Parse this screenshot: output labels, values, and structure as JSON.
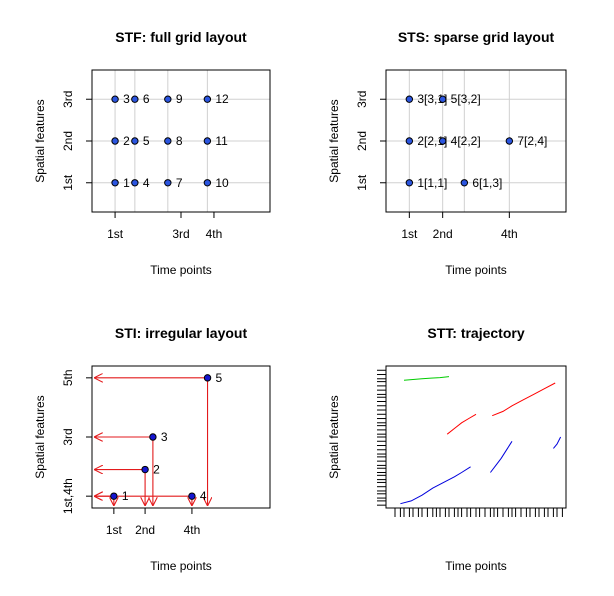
{
  "chart_data": [
    {
      "type": "scatter",
      "title": "STF: full grid layout",
      "xlabel": "Time points",
      "ylabel": "Spatial features",
      "xlim": [
        0.3,
        5.7
      ],
      "ylim": [
        0.3,
        3.7
      ],
      "x_ticks": [
        {
          "v": 1,
          "label": "1st"
        },
        {
          "v": 3,
          "label": "3rd"
        },
        {
          "v": 4,
          "label": "4th"
        }
      ],
      "y_ticks": [
        {
          "v": 1,
          "label": "1st"
        },
        {
          "v": 2,
          "label": "2nd"
        },
        {
          "v": 3,
          "label": "3rd"
        }
      ],
      "grid_x": [
        1,
        1.6,
        2.6,
        3.8
      ],
      "grid_y": [
        1,
        2,
        3
      ],
      "grid": true,
      "points": [
        {
          "x": 1,
          "y": 1,
          "label": "1"
        },
        {
          "x": 1,
          "y": 2,
          "label": "2"
        },
        {
          "x": 1,
          "y": 3,
          "label": "3"
        },
        {
          "x": 1.6,
          "y": 1,
          "label": "4"
        },
        {
          "x": 1.6,
          "y": 2,
          "label": "5"
        },
        {
          "x": 1.6,
          "y": 3,
          "label": "6"
        },
        {
          "x": 2.6,
          "y": 1,
          "label": "7"
        },
        {
          "x": 2.6,
          "y": 2,
          "label": "8"
        },
        {
          "x": 2.6,
          "y": 3,
          "label": "9"
        },
        {
          "x": 3.8,
          "y": 1,
          "label": "10"
        },
        {
          "x": 3.8,
          "y": 2,
          "label": "11"
        },
        {
          "x": 3.8,
          "y": 3,
          "label": "12"
        }
      ]
    },
    {
      "type": "scatter",
      "title": "STS: sparse grid layout",
      "xlabel": "Time points",
      "ylabel": "Spatial features",
      "xlim": [
        0.3,
        5.7
      ],
      "ylim": [
        0.3,
        3.7
      ],
      "x_ticks": [
        {
          "v": 1,
          "label": "1st"
        },
        {
          "v": 2,
          "label": "2nd"
        },
        {
          "v": 4,
          "label": "4th"
        }
      ],
      "y_ticks": [
        {
          "v": 1,
          "label": "1st"
        },
        {
          "v": 2,
          "label": "2nd"
        },
        {
          "v": 3,
          "label": "3rd"
        }
      ],
      "grid_x": [
        1,
        2,
        2.65,
        4
      ],
      "grid_y": [
        1,
        2,
        3
      ],
      "grid": true,
      "points": [
        {
          "x": 1,
          "y": 1,
          "label": "1[1,1]"
        },
        {
          "x": 1,
          "y": 2,
          "label": "2[2,1]"
        },
        {
          "x": 1,
          "y": 3,
          "label": "3[3,1]"
        },
        {
          "x": 2,
          "y": 2,
          "label": "4[2,2]"
        },
        {
          "x": 2,
          "y": 3,
          "label": "5[3,2]"
        },
        {
          "x": 2.65,
          "y": 1,
          "label": "6[1,3]"
        },
        {
          "x": 4,
          "y": 2,
          "label": "7[2,4]"
        }
      ]
    },
    {
      "type": "scatter",
      "title": "STI: irregular layout",
      "xlabel": "Time points",
      "ylabel": "Spatial features",
      "xlim": [
        0.3,
        6.0
      ],
      "ylim": [
        0.6,
        5.4
      ],
      "x_ticks": [
        {
          "v": 1,
          "label": "1st"
        },
        {
          "v": 2,
          "label": "2nd"
        },
        {
          "v": 3.5,
          "label": "4th"
        }
      ],
      "y_ticks": [
        {
          "v": 1,
          "label": "1st,4th"
        },
        {
          "v": 3,
          "label": "3rd"
        },
        {
          "v": 5,
          "label": "5th"
        }
      ],
      "grid": false,
      "points": [
        {
          "x": 1,
          "y": 1,
          "label": "1"
        },
        {
          "x": 2,
          "y": 1.9,
          "label": "2"
        },
        {
          "x": 2.25,
          "y": 3,
          "label": "3"
        },
        {
          "x": 3.5,
          "y": 1,
          "label": "4"
        },
        {
          "x": 4,
          "y": 5,
          "label": "5"
        }
      ],
      "arrow_color": "#e31a1c",
      "point_color": "#1515d0"
    },
    {
      "type": "line",
      "title": "STT: trajectory",
      "xlabel": "Time points",
      "ylabel": "Spatial features",
      "xlim": [
        0,
        1
      ],
      "ylim": [
        0,
        1
      ],
      "grid": false,
      "series": [
        {
          "color": "#00cc00",
          "x": [
            0.1,
            0.15,
            0.2,
            0.25,
            0.3,
            0.35
          ],
          "y": [
            0.9,
            0.905,
            0.91,
            0.915,
            0.918,
            0.925
          ]
        },
        {
          "color": "#ff0000",
          "x": [
            0.34,
            0.38,
            0.42,
            0.46,
            0.5
          ],
          "y": [
            0.52,
            0.56,
            0.6,
            0.63,
            0.66
          ]
        },
        {
          "color": "#ff0000",
          "x": [
            0.59,
            0.65,
            0.7,
            0.76,
            0.82,
            0.88,
            0.94
          ],
          "y": [
            0.65,
            0.68,
            0.72,
            0.76,
            0.8,
            0.84,
            0.88
          ]
        },
        {
          "color": "#0000dd",
          "x": [
            0.08,
            0.14,
            0.2,
            0.26,
            0.32,
            0.38,
            0.42,
            0.47
          ],
          "y": [
            0.03,
            0.05,
            0.09,
            0.14,
            0.18,
            0.22,
            0.25,
            0.29
          ]
        },
        {
          "color": "#0000dd",
          "x": [
            0.58,
            0.61,
            0.64,
            0.67,
            0.7
          ],
          "y": [
            0.25,
            0.3,
            0.35,
            0.41,
            0.47
          ]
        },
        {
          "color": "#0000dd",
          "x": [
            0.93,
            0.95,
            0.97
          ],
          "y": [
            0.42,
            0.45,
            0.5
          ]
        }
      ],
      "rug_x": [
        0.05,
        0.08,
        0.1,
        0.13,
        0.15,
        0.18,
        0.2,
        0.23,
        0.26,
        0.28,
        0.3,
        0.33,
        0.35,
        0.38,
        0.4,
        0.42,
        0.45,
        0.47,
        0.5,
        0.52,
        0.55,
        0.58,
        0.6,
        0.62,
        0.65,
        0.68,
        0.7,
        0.72,
        0.75,
        0.78,
        0.8,
        0.83,
        0.85,
        0.88,
        0.9,
        0.93,
        0.95,
        0.98
      ],
      "rug_y": [
        0.02,
        0.05,
        0.07,
        0.1,
        0.12,
        0.15,
        0.18,
        0.2,
        0.23,
        0.25,
        0.28,
        0.3,
        0.33,
        0.36,
        0.38,
        0.41,
        0.44,
        0.47,
        0.5,
        0.52,
        0.55,
        0.58,
        0.6,
        0.63,
        0.66,
        0.69,
        0.72,
        0.75,
        0.78,
        0.8,
        0.83,
        0.86,
        0.89,
        0.91,
        0.94,
        0.97
      ]
    }
  ]
}
